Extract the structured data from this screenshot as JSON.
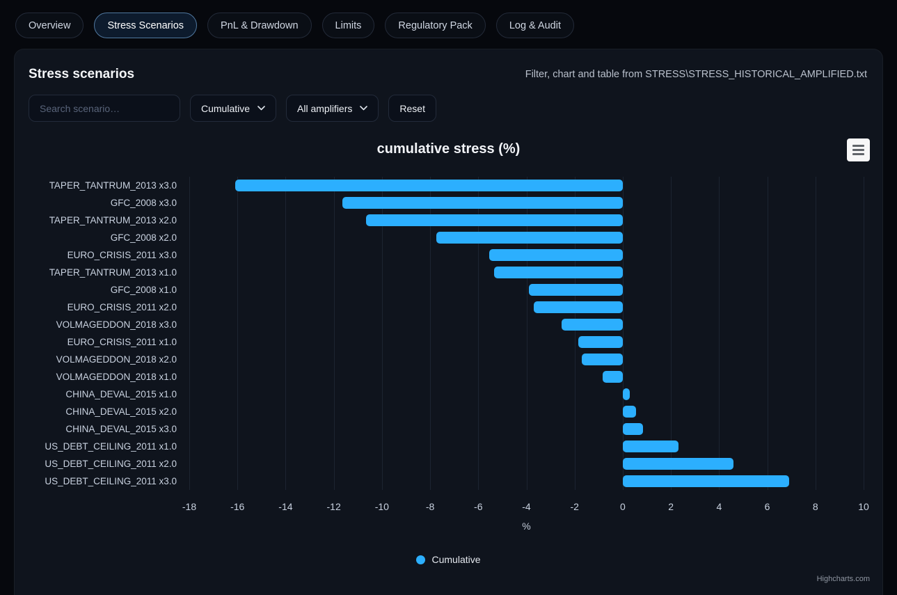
{
  "tabs": [
    {
      "label": "Overview",
      "active": false
    },
    {
      "label": "Stress Scenarios",
      "active": true
    },
    {
      "label": "PnL & Drawdown",
      "active": false
    },
    {
      "label": "Limits",
      "active": false
    },
    {
      "label": "Regulatory Pack",
      "active": false
    },
    {
      "label": "Log & Audit",
      "active": false
    }
  ],
  "panel": {
    "title": "Stress scenarios",
    "source_note": "Filter, chart and table from STRESS\\STRESS_HISTORICAL_AMPLIFIED.txt"
  },
  "controls": {
    "search_placeholder": "Search scenario…",
    "metric_select_value": "Cumulative",
    "amplifier_select_value": "All amplifiers",
    "reset_label": "Reset"
  },
  "chart_data": {
    "type": "bar",
    "title": "cumulative stress (%)",
    "orientation": "horizontal",
    "categories": [
      "TAPER_TANTRUM_2013 x3.0",
      "GFC_2008 x3.0",
      "TAPER_TANTRUM_2013 x2.0",
      "GFC_2008 x2.0",
      "EURO_CRISIS_2011 x3.0",
      "TAPER_TANTRUM_2013 x1.0",
      "GFC_2008 x1.0",
      "EURO_CRISIS_2011 x2.0",
      "VOLMAGEDDON_2018 x3.0",
      "EURO_CRISIS_2011 x1.0",
      "VOLMAGEDDON_2018 x2.0",
      "VOLMAGEDDON_2018 x1.0",
      "CHINA_DEVAL_2015 x1.0",
      "CHINA_DEVAL_2015 x2.0",
      "CHINA_DEVAL_2015 x3.0",
      "US_DEBT_CEILING_2011 x1.0",
      "US_DEBT_CEILING_2011 x2.0",
      "US_DEBT_CEILING_2011 x3.0"
    ],
    "series": [
      {
        "name": "Cumulative",
        "color": "#2caffe",
        "values": [
          -16.1,
          -11.65,
          -10.65,
          -7.75,
          -5.55,
          -5.35,
          -3.9,
          -3.7,
          -2.55,
          -1.85,
          -1.7,
          -0.85,
          0.28,
          0.56,
          0.84,
          2.3,
          4.6,
          6.9
        ]
      }
    ],
    "xlabel": "%",
    "axis_min": -18,
    "axis_max": 10,
    "ticks": [
      -18,
      -16,
      -14,
      -12,
      -10,
      -8,
      -6,
      -4,
      -2,
      0,
      2,
      4,
      6,
      8,
      10
    ],
    "grid": true,
    "legend_position": "bottom-center"
  },
  "credit": {
    "label": "Highcharts.com"
  }
}
